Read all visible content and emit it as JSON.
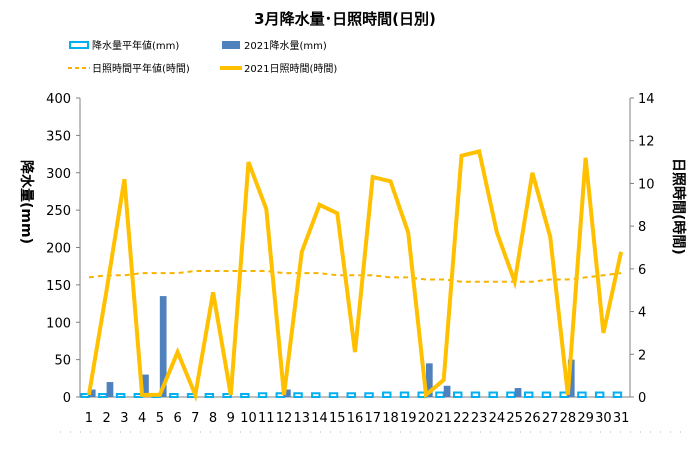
{
  "chart_data": {
    "type": "bar+line",
    "title": "3月降水量･日照時間(日別)",
    "categories": [
      "1",
      "2",
      "3",
      "4",
      "5",
      "6",
      "7",
      "8",
      "9",
      "10",
      "11",
      "12",
      "13",
      "14",
      "15",
      "16",
      "17",
      "18",
      "19",
      "20",
      "21",
      "22",
      "23",
      "24",
      "25",
      "26",
      "27",
      "28",
      "29",
      "30",
      "31"
    ],
    "y_left": {
      "label": "降水量(mm)",
      "ylim": [
        0,
        400
      ],
      "ticks": [
        0,
        50,
        100,
        150,
        200,
        250,
        300,
        350,
        400
      ]
    },
    "y_right": {
      "label": "日照時間(時間)",
      "ylim": [
        0,
        14
      ],
      "ticks": [
        0,
        2,
        4,
        6,
        8,
        10,
        12,
        14
      ]
    },
    "series": [
      {
        "name": "降水量平年値(mm)",
        "kind": "bar",
        "axis": "left",
        "style": "outline",
        "color": "#00b0f0",
        "values": [
          4,
          4,
          4,
          4,
          4,
          4,
          4,
          4,
          4,
          4,
          5,
          5,
          5,
          5,
          5,
          5,
          5,
          6,
          6,
          6,
          6,
          6,
          6,
          6,
          6,
          6,
          6,
          6,
          6,
          6,
          6
        ]
      },
      {
        "name": "2021降水量(mm)",
        "kind": "bar",
        "axis": "left",
        "style": "filled",
        "color": "#4f81bd",
        "values": [
          10,
          20,
          0,
          30,
          135,
          0,
          0,
          0,
          0,
          0,
          0,
          10,
          0,
          0,
          0,
          0,
          0,
          0,
          0,
          45,
          15,
          0,
          0,
          0,
          12,
          0,
          0,
          50,
          0,
          0,
          0
        ]
      },
      {
        "name": "日照時間平年値(時間)",
        "kind": "line",
        "axis": "right",
        "style": "dashed",
        "color": "#f6b400",
        "values": [
          5.6,
          5.7,
          5.7,
          5.8,
          5.8,
          5.8,
          5.9,
          5.9,
          5.9,
          5.9,
          5.9,
          5.8,
          5.8,
          5.8,
          5.7,
          5.7,
          5.7,
          5.6,
          5.6,
          5.5,
          5.5,
          5.4,
          5.4,
          5.4,
          5.4,
          5.4,
          5.5,
          5.5,
          5.6,
          5.7,
          5.8
        ]
      },
      {
        "name": "2021日照時間(時間)",
        "kind": "line",
        "axis": "right",
        "style": "solid",
        "color": "#ffc000",
        "values": [
          0.1,
          5,
          10.2,
          0.1,
          0.1,
          2.1,
          0.1,
          4.9,
          0.1,
          11,
          8.8,
          0.1,
          6.8,
          9,
          8.6,
          2.1,
          10.3,
          10.1,
          7.7,
          0.1,
          0.8,
          11.3,
          11.5,
          7.7,
          5.4,
          10.5,
          7.5,
          0.1,
          11.2,
          3,
          6.8
        ]
      }
    ],
    "legend": {
      "placement": "top"
    },
    "grid": false
  }
}
